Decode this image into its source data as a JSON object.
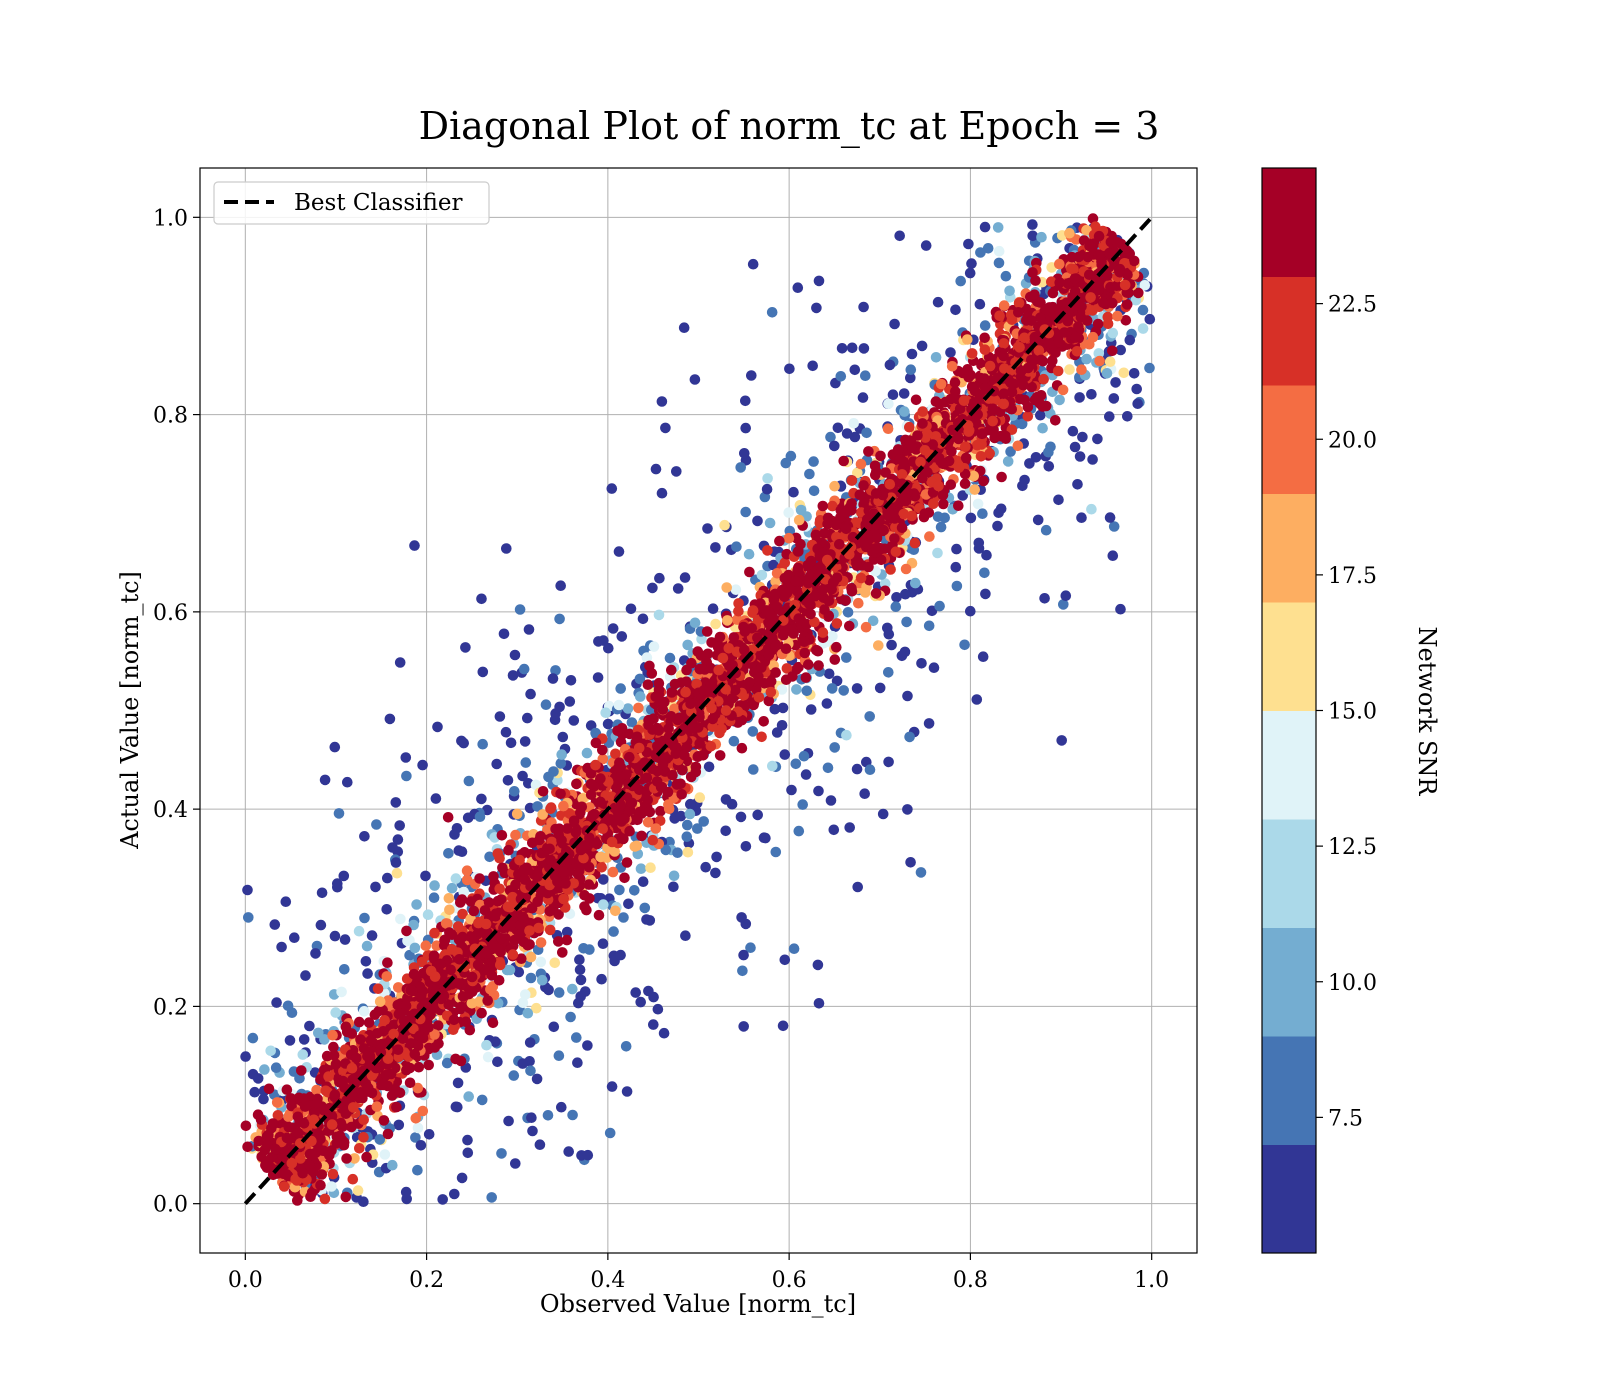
{
  "chart_data": {
    "type": "scatter",
    "title": "Diagonal Plot of norm_tc at Epoch = 3",
    "xlabel": "Observed Value [norm_tc]",
    "ylabel": "Actual Value [norm_tc]",
    "xlim": [
      -0.05,
      1.05
    ],
    "ylim": [
      -0.05,
      1.05
    ],
    "xticks": [
      0.0,
      0.2,
      0.4,
      0.6,
      0.8,
      1.0
    ],
    "yticks": [
      0.0,
      0.2,
      0.4,
      0.6,
      0.8,
      1.0
    ],
    "xtick_labels": [
      "0.0",
      "0.2",
      "0.4",
      "0.6",
      "0.8",
      "1.0"
    ],
    "ytick_labels": [
      "0.0",
      "0.2",
      "0.4",
      "0.6",
      "0.8",
      "1.0"
    ],
    "grid": true,
    "legend": {
      "placement": "upper-left",
      "entries": [
        "Best Classifier"
      ]
    },
    "reference_line": {
      "name": "Best Classifier",
      "x": [
        0.0,
        1.0
      ],
      "y": [
        0.0,
        1.0
      ],
      "style": "dashed",
      "color": "#000000"
    },
    "colorbar": {
      "label": "Network SNR",
      "range": [
        5.0,
        25.0
      ],
      "ticks": [
        7.5,
        10.0,
        12.5,
        15.0,
        17.5,
        20.0,
        22.5
      ],
      "tick_labels": [
        "7.5",
        "10.0",
        "12.5",
        "15.0",
        "17.5",
        "20.0",
        "22.5"
      ],
      "colors": [
        "#313695",
        "#4575b4",
        "#74add1",
        "#abd9e9",
        "#e0f3f8",
        "#fee090",
        "#fdae61",
        "#f46d43",
        "#d73027",
        "#a50026"
      ]
    },
    "points_description": {
      "count_approx": 12000,
      "band_center": "y = x",
      "high_snr_band_halfwidth": 0.05,
      "low_snr_scatter_halfwidth": 0.4
    }
  }
}
